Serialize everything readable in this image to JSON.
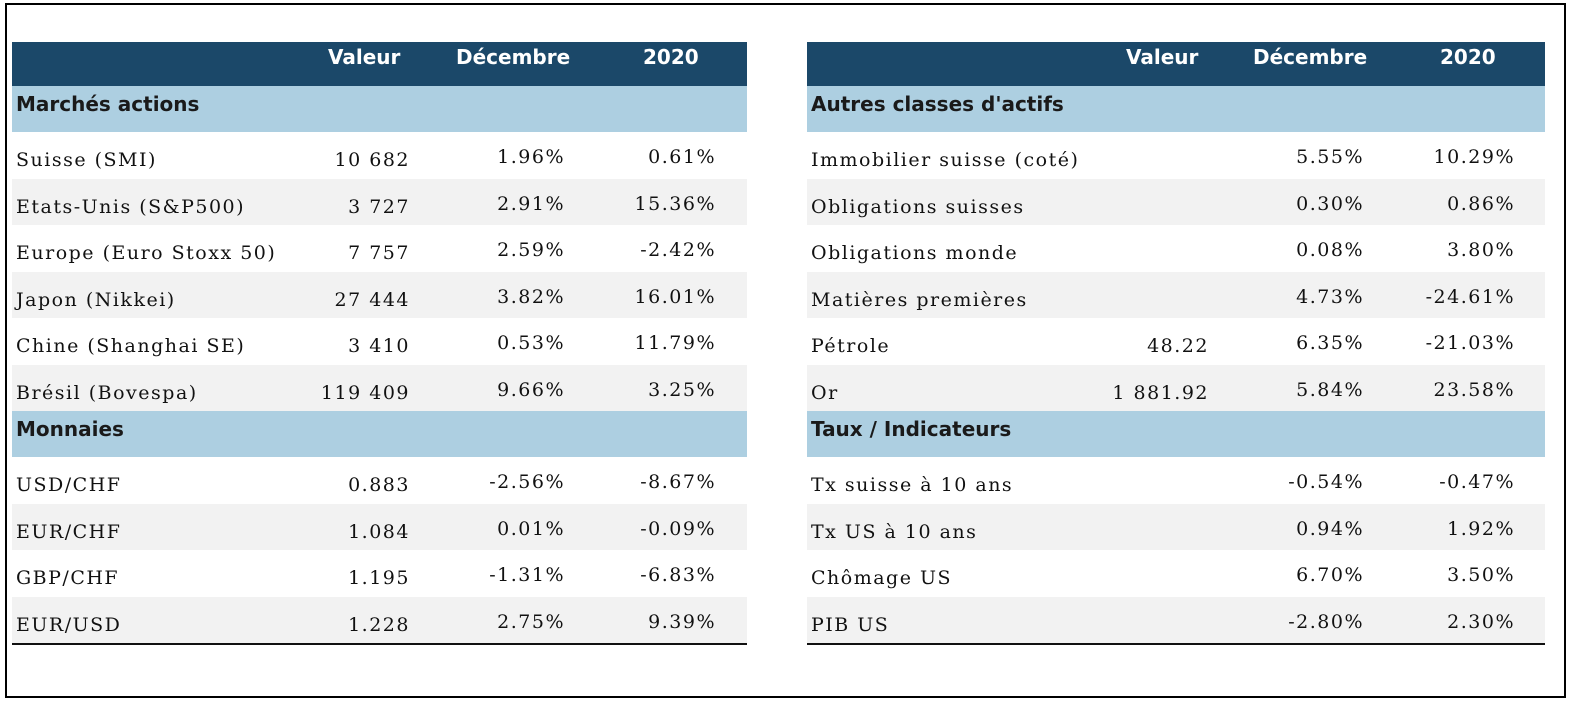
{
  "columns": {
    "valeur": "Valeur",
    "decembre": "Décembre",
    "annee": "2020"
  },
  "left": {
    "sections": [
      {
        "title": "Marchés actions",
        "rows": [
          {
            "label": "Suisse (SMI)",
            "valeur": "10 682",
            "decembre": "1.96%",
            "annee": "0.61%"
          },
          {
            "label": "Etats-Unis (S&P500)",
            "valeur": "3 727",
            "decembre": "2.91%",
            "annee": "15.36%"
          },
          {
            "label": "Europe (Euro Stoxx 50)",
            "valeur": "7 757",
            "decembre": "2.59%",
            "annee": "-2.42%"
          },
          {
            "label": "Japon (Nikkei)",
            "valeur": "27 444",
            "decembre": "3.82%",
            "annee": "16.01%"
          },
          {
            "label": "Chine (Shanghai SE)",
            "valeur": "3 410",
            "decembre": "0.53%",
            "annee": "11.79%"
          },
          {
            "label": "Brésil (Bovespa)",
            "valeur": "119 409",
            "decembre": "9.66%",
            "annee": "3.25%"
          }
        ]
      },
      {
        "title": "Monnaies",
        "rows": [
          {
            "label": "USD/CHF",
            "valeur": "0.883",
            "decembre": "-2.56%",
            "annee": "-8.67%"
          },
          {
            "label": "EUR/CHF",
            "valeur": "1.084",
            "decembre": "0.01%",
            "annee": "-0.09%"
          },
          {
            "label": "GBP/CHF",
            "valeur": "1.195",
            "decembre": "-1.31%",
            "annee": "-6.83%"
          },
          {
            "label": "EUR/USD",
            "valeur": "1.228",
            "decembre": "2.75%",
            "annee": "9.39%"
          }
        ]
      }
    ]
  },
  "right": {
    "sections": [
      {
        "title": "Autres classes d'actifs",
        "rows": [
          {
            "label": "Immobilier suisse (coté)",
            "valeur": "",
            "decembre": "5.55%",
            "annee": "10.29%"
          },
          {
            "label": "Obligations suisses",
            "valeur": "",
            "decembre": "0.30%",
            "annee": "0.86%"
          },
          {
            "label": "Obligations monde",
            "valeur": "",
            "decembre": "0.08%",
            "annee": "3.80%"
          },
          {
            "label": "Matières premières",
            "valeur": "",
            "decembre": "4.73%",
            "annee": "-24.61%"
          },
          {
            "label": "Pétrole",
            "valeur": "48.22",
            "decembre": "6.35%",
            "annee": "-21.03%"
          },
          {
            "label": "Or",
            "valeur": "1 881.92",
            "decembre": "5.84%",
            "annee": "23.58%"
          }
        ]
      },
      {
        "title": "Taux / Indicateurs",
        "rows": [
          {
            "label": "Tx suisse à 10 ans",
            "valeur": "",
            "decembre": "-0.54%",
            "annee": "-0.47%"
          },
          {
            "label": "Tx US à 10 ans",
            "valeur": "",
            "decembre": "0.94%",
            "annee": "1.92%"
          },
          {
            "label": "Chômage US",
            "valeur": "",
            "decembre": "6.70%",
            "annee": "3.50%"
          },
          {
            "label": "PIB US",
            "valeur": "",
            "decembre": "-2.80%",
            "annee": "2.30%"
          }
        ]
      }
    ]
  },
  "colors": {
    "header": "#1b4869",
    "section": "#adcfe1",
    "alt_row": "#f2f2f2"
  }
}
